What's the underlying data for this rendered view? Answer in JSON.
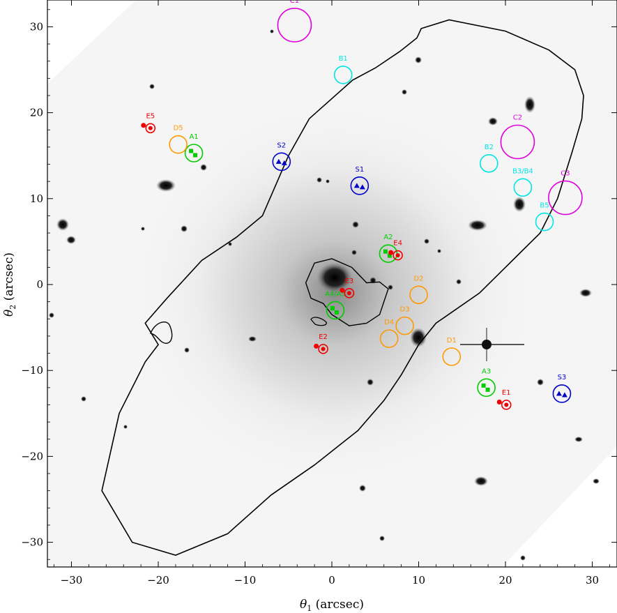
{
  "figure": {
    "xlabel": "θ1 (arcsec)",
    "ylabel": "θ2 (arcsec)"
  },
  "chart_data": {
    "type": "scatter",
    "xlabel": "θ1 (arcsec)",
    "ylabel": "θ2 (arcsec)",
    "xlim": [
      -33,
      33
    ],
    "ylim": [
      -33,
      33
    ],
    "xticks": [
      -30,
      -20,
      -10,
      0,
      10,
      20,
      30
    ],
    "yticks": [
      -30,
      -20,
      -10,
      0,
      10,
      20,
      30
    ],
    "grid": false,
    "background": "greyscale inverted image of galaxy cluster with critical curve overlay",
    "critical_curve": {
      "color": "#000000",
      "outer": [
        [
          -21.5,
          -4.5
        ],
        [
          -19,
          -1.6
        ],
        [
          -15,
          2.8
        ],
        [
          -11,
          5.5
        ],
        [
          -8,
          8
        ],
        [
          -6.5,
          11.5
        ],
        [
          -5,
          15
        ],
        [
          -2.6,
          19.3
        ],
        [
          2.4,
          23.8
        ],
        [
          5,
          25.2
        ],
        [
          7.8,
          27.1
        ],
        [
          9.8,
          28.7
        ],
        [
          10.3,
          29.8
        ],
        [
          13.5,
          30.8
        ],
        [
          20,
          29.5
        ],
        [
          25,
          27.3
        ],
        [
          28,
          25
        ],
        [
          29,
          22
        ],
        [
          28.8,
          19.3
        ],
        [
          27.7,
          15.5
        ],
        [
          26,
          10
        ],
        [
          24,
          6
        ],
        [
          21,
          3
        ],
        [
          17,
          -1
        ],
        [
          12,
          -4.5
        ],
        [
          10,
          -7
        ],
        [
          8,
          -10.5
        ],
        [
          6,
          -13.5
        ],
        [
          3,
          -17
        ],
        [
          -2,
          -21
        ],
        [
          -7,
          -24.5
        ],
        [
          -12,
          -29
        ],
        [
          -18,
          -31.5
        ],
        [
          -23,
          -30
        ],
        [
          -26.5,
          -24
        ],
        [
          -24.5,
          -15
        ],
        [
          -21.5,
          -9
        ],
        [
          -20,
          -7
        ],
        [
          -21.5,
          -4.5
        ]
      ],
      "inner": [
        [
          -3,
          0.2
        ],
        [
          -2,
          2.5
        ],
        [
          0,
          3
        ],
        [
          2.3,
          2
        ],
        [
          4,
          0.2
        ],
        [
          5.5,
          0.3
        ],
        [
          6.5,
          -0.5
        ],
        [
          6,
          -2
        ],
        [
          5.5,
          -3.5
        ],
        [
          4,
          -4.5
        ],
        [
          2,
          -4.8
        ],
        [
          0,
          -3.5
        ],
        [
          -1,
          -2.2
        ],
        [
          -2.4,
          -1.6
        ],
        [
          -3,
          0.2
        ]
      ]
    },
    "series": [
      {
        "name": "A",
        "color": "#00cc00",
        "marker": "square",
        "points": [
          {
            "label": "A1",
            "x": -15.9,
            "y": 15.3
          },
          {
            "label": "A2",
            "x": 6.5,
            "y": 3.6
          },
          {
            "label": "A3",
            "x": 17.8,
            "y": -12.0
          },
          {
            "label": "A4/A5",
            "x": 0.4,
            "y": -3.0
          }
        ]
      },
      {
        "name": "B",
        "color": "#00e5e5",
        "marker": "none",
        "points": [
          {
            "label": "B1",
            "x": 1.3,
            "y": 24.4
          },
          {
            "label": "B2",
            "x": 18.1,
            "y": 14.1
          },
          {
            "label": "B3/B4",
            "x": 22.0,
            "y": 11.3
          },
          {
            "label": "B5",
            "x": 24.5,
            "y": 7.3
          }
        ]
      },
      {
        "name": "C",
        "color": "#dd00dd",
        "marker": "none",
        "points": [
          {
            "label": "C1",
            "x": -4.3,
            "y": 30.2
          },
          {
            "label": "C2",
            "x": 21.4,
            "y": 16.6
          },
          {
            "label": "C3",
            "x": 26.9,
            "y": 10.1
          }
        ]
      },
      {
        "name": "D",
        "color": "#ff9900",
        "marker": "none",
        "points": [
          {
            "label": "D1",
            "x": 13.8,
            "y": -8.4
          },
          {
            "label": "D2",
            "x": 10.0,
            "y": -1.2
          },
          {
            "label": "D3",
            "x": 8.4,
            "y": -4.8
          },
          {
            "label": "D4",
            "x": 6.6,
            "y": -6.3
          },
          {
            "label": "D5",
            "x": -17.7,
            "y": 16.3
          }
        ]
      },
      {
        "name": "E",
        "color": "#ee0000",
        "marker": "circle",
        "points": [
          {
            "label": "E1",
            "x": 20.1,
            "y": -14.0
          },
          {
            "label": "E2",
            "x": -1.0,
            "y": -7.5
          },
          {
            "label": "E3",
            "x": 2.0,
            "y": -1.0
          },
          {
            "label": "E4",
            "x": 7.6,
            "y": 3.4
          },
          {
            "label": "E5",
            "x": -20.9,
            "y": 18.2
          }
        ]
      },
      {
        "name": "S",
        "color": "#0000cc",
        "marker": "triangle",
        "points": [
          {
            "label": "S1",
            "x": 3.2,
            "y": 11.5
          },
          {
            "label": "S2",
            "x": -5.8,
            "y": 14.3
          },
          {
            "label": "S3",
            "x": 26.5,
            "y": -12.7
          }
        ]
      }
    ]
  }
}
